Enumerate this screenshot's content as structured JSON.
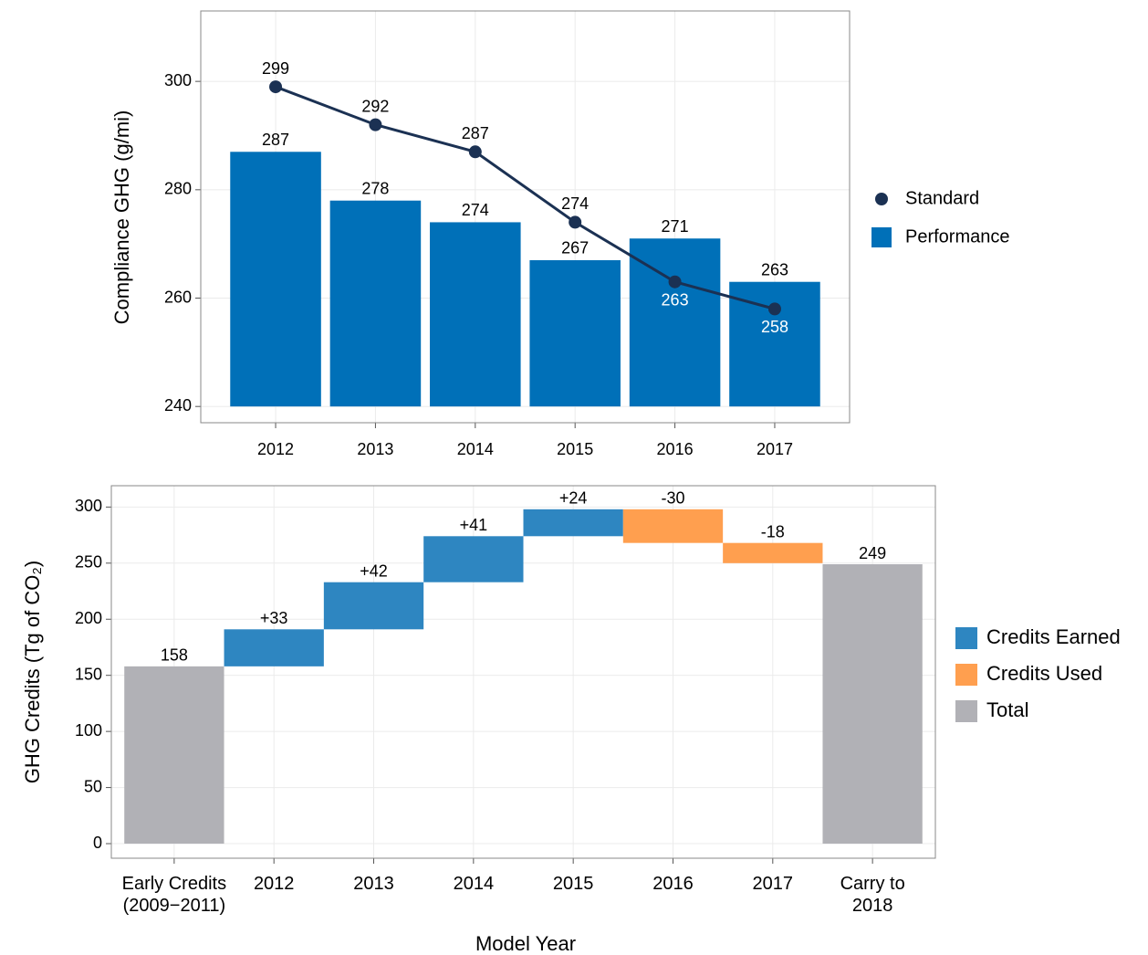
{
  "chart_data": [
    {
      "type": "bar_line",
      "ylabel": "Compliance GHG (g/mi)",
      "categories": [
        "2012",
        "2013",
        "2014",
        "2015",
        "2016",
        "2017"
      ],
      "series": [
        {
          "name": "Standard",
          "kind": "line",
          "color": "#1b3153",
          "values": [
            299,
            292,
            287,
            274,
            263,
            258
          ]
        },
        {
          "name": "Performance",
          "kind": "bar",
          "color": "#0070b8",
          "values": [
            287,
            278,
            274,
            267,
            271,
            263
          ]
        }
      ],
      "ylim": [
        237,
        313
      ],
      "yticks": [
        240,
        260,
        280,
        300
      ],
      "grid": true,
      "legend": "right"
    },
    {
      "type": "waterfall",
      "ylabel": "GHG Credits (Tg of CO₂)",
      "xlabel": "Model Year",
      "categories": [
        "Early Credits\n(2009−2011)",
        "2012",
        "2013",
        "2014",
        "2015",
        "2016",
        "2017",
        "Carry to\n2018"
      ],
      "series": [
        {
          "name": "Credits Earned",
          "color": "#2e86c1",
          "values": [
            null,
            33,
            42,
            41,
            24,
            null,
            null,
            null
          ],
          "value_labels": [
            null,
            "+33",
            "+42",
            "+41",
            "+24",
            null,
            null,
            null
          ]
        },
        {
          "name": "Credits Used",
          "color": "#ff9f4f",
          "values": [
            null,
            null,
            null,
            null,
            null,
            -30,
            -18,
            null
          ],
          "value_labels": [
            null,
            null,
            null,
            null,
            null,
            "-30",
            "-18",
            null
          ]
        },
        {
          "name": "Total",
          "color": "#b1b1b6",
          "values": [
            158,
            null,
            null,
            null,
            null,
            null,
            null,
            249
          ]
        }
      ],
      "ylim": [
        -13,
        319
      ],
      "yticks": [
        0,
        50,
        100,
        150,
        200,
        250,
        300
      ],
      "grid": true,
      "legend": "right"
    }
  ]
}
